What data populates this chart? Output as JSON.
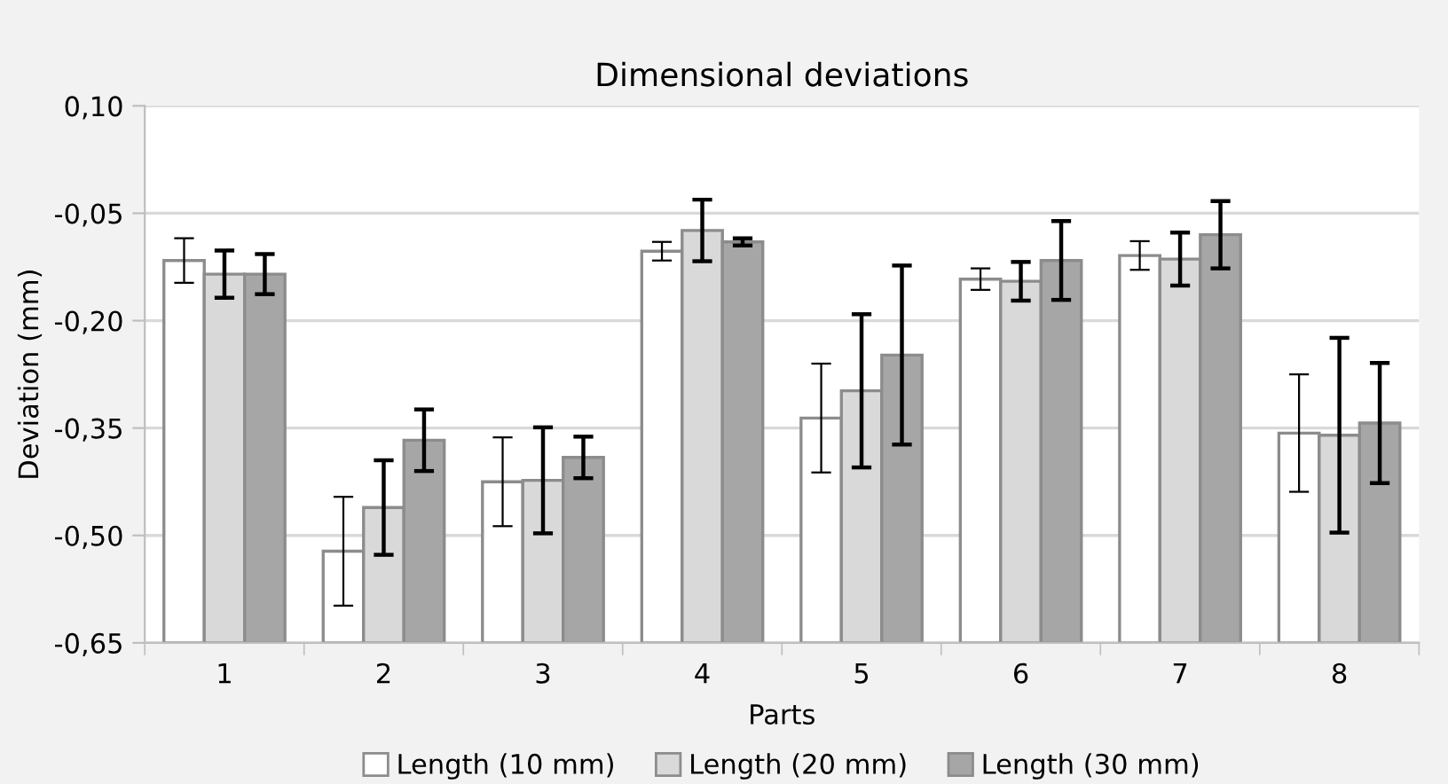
{
  "chart_data": {
    "type": "bar",
    "title": "Dimensional deviations",
    "xlabel": "Parts",
    "ylabel": "Deviation (mm)",
    "categories": [
      "1",
      "2",
      "3",
      "4",
      "5",
      "6",
      "7",
      "8"
    ],
    "series": [
      {
        "name": "Length (10 mm)",
        "color": "#ffffff",
        "base": [
          -0.65,
          -0.65,
          -0.65,
          -0.65,
          -0.65,
          -0.65,
          -0.65,
          -0.65
        ],
        "values": [
          0.534,
          0.128,
          0.225,
          0.547,
          0.314,
          0.508,
          0.541,
          0.293
        ],
        "errors": [
          0.031,
          0.076,
          0.062,
          0.013,
          0.076,
          0.015,
          0.02,
          0.082
        ]
      },
      {
        "name": "Length (20 mm)",
        "color": "#d9d9d9",
        "base": [
          -0.65,
          -0.65,
          -0.65,
          -0.65,
          -0.65,
          -0.65,
          -0.65,
          -0.65
        ],
        "values": [
          0.515,
          0.189,
          0.227,
          0.576,
          0.352,
          0.505,
          0.536,
          0.29
        ],
        "errors": [
          0.033,
          0.066,
          0.074,
          0.043,
          0.107,
          0.027,
          0.037,
          0.136
        ]
      },
      {
        "name": "Length (30 mm)",
        "color": "#a6a6a6",
        "base": [
          -0.65,
          -0.65,
          -0.65,
          -0.65,
          -0.65,
          -0.65,
          -0.65,
          -0.65
        ],
        "values": [
          0.515,
          0.283,
          0.259,
          0.56,
          0.402,
          0.534,
          0.57,
          0.307
        ],
        "errors": [
          0.028,
          0.043,
          0.029,
          0.005,
          0.125,
          0.055,
          0.047,
          0.084
        ]
      }
    ],
    "ylim": [
      -0.65,
      0.1
    ],
    "yticks": [
      {
        "value": 0.1,
        "label": "0,10"
      },
      {
        "value": -0.05,
        "label": "-0,05"
      },
      {
        "value": -0.2,
        "label": "-0,20"
      },
      {
        "value": -0.35,
        "label": "-0,35"
      },
      {
        "value": -0.5,
        "label": "-0,50"
      },
      {
        "value": -0.65,
        "label": "-0,65"
      }
    ],
    "grid": "y",
    "legend": "bottom"
  }
}
